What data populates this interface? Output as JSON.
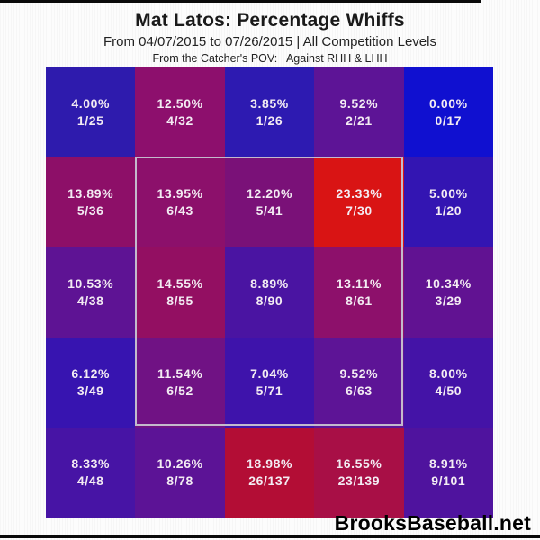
{
  "header": {
    "title": "Mat Latos: Percentage Whiffs",
    "subtitle": "From 04/07/2015 to 07/26/2015 | All Competition Levels",
    "pov_line": "From the Catcher's POV:   Against RHH & LHH"
  },
  "branding": {
    "site": "BrooksBaseball.net"
  },
  "chart_data": {
    "type": "heatmap",
    "title": "Mat Latos: Percentage Whiffs",
    "date_range_start": "04/07/2015",
    "date_range_end": "07/26/2015",
    "competition": "All Competition Levels",
    "pov": "From the Catcher's POV: Against RHH & LHH",
    "metric": "Percentage Whiffs (whiffs / pitches)",
    "grid": {
      "rows": 5,
      "cols": 5
    },
    "legend_position": "none",
    "color_scale": "blue (0%) through purple to red (23.33%)",
    "strike_zone_overlay": {
      "from_row": 2,
      "to_row": 4,
      "from_col": 2,
      "to_col": 4,
      "border_color": "#c3bacc"
    },
    "cells": [
      {
        "row": 1,
        "col": 1,
        "pct": "4.00%",
        "fraction": "1/25",
        "whiffs": 1,
        "pitches": 25,
        "color": "#2e1bad"
      },
      {
        "row": 1,
        "col": 2,
        "pct": "12.50%",
        "fraction": "4/32",
        "whiffs": 4,
        "pitches": 32,
        "color": "#8d0f6d"
      },
      {
        "row": 1,
        "col": 3,
        "pct": "3.85%",
        "fraction": "1/26",
        "whiffs": 1,
        "pitches": 26,
        "color": "#2d1ab1"
      },
      {
        "row": 1,
        "col": 4,
        "pct": "9.52%",
        "fraction": "2/21",
        "whiffs": 2,
        "pitches": 21,
        "color": "#5d1496"
      },
      {
        "row": 1,
        "col": 5,
        "pct": "0.00%",
        "fraction": "0/17",
        "whiffs": 0,
        "pitches": 17,
        "color": "#1010d0"
      },
      {
        "row": 2,
        "col": 1,
        "pct": "13.89%",
        "fraction": "5/36",
        "whiffs": 5,
        "pitches": 36,
        "color": "#8d0f68"
      },
      {
        "row": 2,
        "col": 2,
        "pct": "13.95%",
        "fraction": "6/43",
        "whiffs": 6,
        "pitches": 43,
        "color": "#8c106b"
      },
      {
        "row": 2,
        "col": 3,
        "pct": "12.20%",
        "fraction": "5/41",
        "whiffs": 5,
        "pitches": 41,
        "color": "#7a1178"
      },
      {
        "row": 2,
        "col": 4,
        "pct": "23.33%",
        "fraction": "7/30",
        "whiffs": 7,
        "pitches": 30,
        "color": "#d91414"
      },
      {
        "row": 2,
        "col": 5,
        "pct": "5.00%",
        "fraction": "1/20",
        "whiffs": 1,
        "pitches": 20,
        "color": "#3315b2"
      },
      {
        "row": 3,
        "col": 1,
        "pct": "10.53%",
        "fraction": "4/38",
        "whiffs": 4,
        "pitches": 38,
        "color": "#5e1394"
      },
      {
        "row": 3,
        "col": 2,
        "pct": "14.55%",
        "fraction": "8/55",
        "whiffs": 8,
        "pitches": 55,
        "color": "#930f62"
      },
      {
        "row": 3,
        "col": 3,
        "pct": "8.89%",
        "fraction": "8/90",
        "whiffs": 8,
        "pitches": 90,
        "color": "#4a14a2"
      },
      {
        "row": 3,
        "col": 4,
        "pct": "13.11%",
        "fraction": "8/61",
        "whiffs": 8,
        "pitches": 61,
        "color": "#8d106b"
      },
      {
        "row": 3,
        "col": 5,
        "pct": "10.34%",
        "fraction": "3/29",
        "whiffs": 3,
        "pitches": 29,
        "color": "#611292"
      },
      {
        "row": 4,
        "col": 1,
        "pct": "6.12%",
        "fraction": "3/49",
        "whiffs": 3,
        "pitches": 49,
        "color": "#3714b0"
      },
      {
        "row": 4,
        "col": 2,
        "pct": "11.54%",
        "fraction": "6/52",
        "whiffs": 6,
        "pitches": 52,
        "color": "#701284"
      },
      {
        "row": 4,
        "col": 3,
        "pct": "7.04%",
        "fraction": "5/71",
        "whiffs": 5,
        "pitches": 71,
        "color": "#3e13ab"
      },
      {
        "row": 4,
        "col": 4,
        "pct": "9.52%",
        "fraction": "6/63",
        "whiffs": 6,
        "pitches": 63,
        "color": "#5d1496"
      },
      {
        "row": 4,
        "col": 5,
        "pct": "8.00%",
        "fraction": "4/50",
        "whiffs": 4,
        "pitches": 50,
        "color": "#4413a7"
      },
      {
        "row": 5,
        "col": 1,
        "pct": "8.33%",
        "fraction": "4/48",
        "whiffs": 4,
        "pitches": 48,
        "color": "#4714a5"
      },
      {
        "row": 5,
        "col": 2,
        "pct": "10.26%",
        "fraction": "8/78",
        "whiffs": 8,
        "pitches": 78,
        "color": "#5c1396"
      },
      {
        "row": 5,
        "col": 3,
        "pct": "18.98%",
        "fraction": "26/137",
        "whiffs": 26,
        "pitches": 137,
        "color": "#b30d35"
      },
      {
        "row": 5,
        "col": 4,
        "pct": "16.55%",
        "fraction": "23/139",
        "whiffs": 23,
        "pitches": 139,
        "color": "#a80f46"
      },
      {
        "row": 5,
        "col": 5,
        "pct": "8.91%",
        "fraction": "9/101",
        "whiffs": 9,
        "pitches": 101,
        "color": "#4f139e"
      }
    ]
  }
}
